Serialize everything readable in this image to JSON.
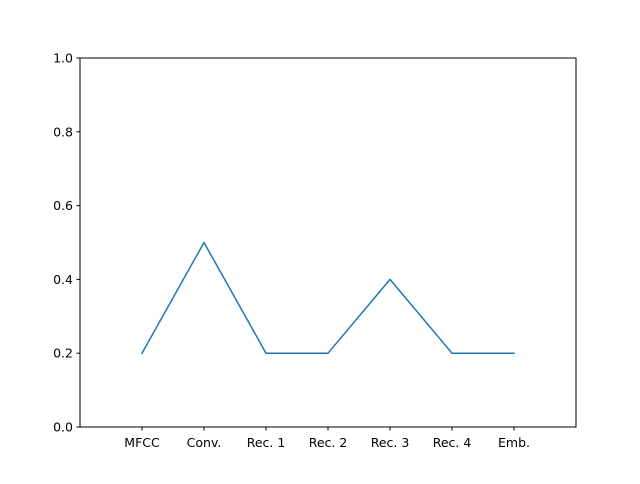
{
  "chart_data": {
    "type": "line",
    "title": "",
    "xlabel": "",
    "ylabel": "",
    "categories": [
      "MFCC",
      "Conv.",
      "Rec. 1",
      "Rec. 2",
      "Rec. 3",
      "Rec. 4",
      "Emb."
    ],
    "series": [
      {
        "values": [
          0.2,
          0.5,
          0.2,
          0.2,
          0.4,
          0.2,
          0.2
        ],
        "color": "#1f77b4"
      }
    ],
    "ylim": [
      0.0,
      1.0
    ],
    "xlim": [
      -1,
      7
    ],
    "yticks": [
      "0.0",
      "0.2",
      "0.4",
      "0.6",
      "0.8",
      "1.0"
    ],
    "grid": false,
    "legend": "none"
  }
}
